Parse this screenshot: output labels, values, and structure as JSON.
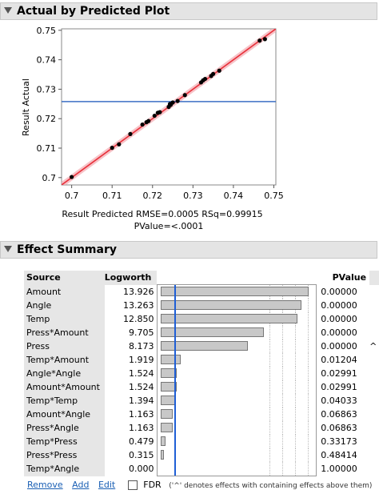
{
  "plot_section": {
    "title": "Actual by Predicted Plot"
  },
  "chart_data": {
    "type": "scatter",
    "title": "",
    "xlabel": "Result Predicted RMSE=0.0005 RSq=0.99915",
    "xlabel2": "PValue=<.0001",
    "ylabel": "Result Actual",
    "xlim": [
      0.6975,
      0.7505
    ],
    "ylim": [
      0.6975,
      0.7505
    ],
    "xticks": [
      "0.7",
      "0.71",
      "0.72",
      "0.73",
      "0.74",
      "0.75"
    ],
    "yticks": [
      "0.7",
      "0.71",
      "0.72",
      "0.73",
      "0.74",
      "0.75"
    ],
    "mean_line": 0.7258,
    "fit_line": [
      [
        0.6975,
        0.6975
      ],
      [
        0.7505,
        0.7505
      ]
    ],
    "points": [
      [
        0.7,
        0.7002
      ],
      [
        0.71,
        0.7101
      ],
      [
        0.7117,
        0.7113
      ],
      [
        0.7145,
        0.7148
      ],
      [
        0.7175,
        0.718
      ],
      [
        0.7185,
        0.7188
      ],
      [
        0.719,
        0.7192
      ],
      [
        0.7205,
        0.721
      ],
      [
        0.7213,
        0.722
      ],
      [
        0.7218,
        0.7222
      ],
      [
        0.724,
        0.724
      ],
      [
        0.7243,
        0.725
      ],
      [
        0.7245,
        0.7247
      ],
      [
        0.725,
        0.7255
      ],
      [
        0.7262,
        0.726
      ],
      [
        0.728,
        0.728
      ],
      [
        0.732,
        0.7323
      ],
      [
        0.7325,
        0.733
      ],
      [
        0.733,
        0.7335
      ],
      [
        0.7345,
        0.7345
      ],
      [
        0.735,
        0.7352
      ],
      [
        0.7365,
        0.7363
      ],
      [
        0.7465,
        0.7465
      ],
      [
        0.7478,
        0.747
      ]
    ],
    "colors": {
      "fit": "#e8303a",
      "band": "#f3aab0",
      "mean": "#3c6fc4",
      "point": "#000000"
    }
  },
  "effect_section": {
    "title": "Effect Summary",
    "headers": {
      "source": "Source",
      "logworth": "Logworth",
      "pvalue": "PValue"
    },
    "rows": [
      {
        "source": "Amount",
        "logworth": "13.926",
        "lw": 13.926,
        "pvalue": "0.00000",
        "flag": ""
      },
      {
        "source": "Angle",
        "logworth": "13.263",
        "lw": 13.263,
        "pvalue": "0.00000",
        "flag": ""
      },
      {
        "source": "Temp",
        "logworth": "12.850",
        "lw": 12.85,
        "pvalue": "0.00000",
        "flag": ""
      },
      {
        "source": "Press*Amount",
        "logworth": "9.705",
        "lw": 9.705,
        "pvalue": "0.00000",
        "flag": ""
      },
      {
        "source": "Press",
        "logworth": "8.173",
        "lw": 8.173,
        "pvalue": "0.00000",
        "flag": "^"
      },
      {
        "source": "Temp*Amount",
        "logworth": "1.919",
        "lw": 1.919,
        "pvalue": "0.01204",
        "flag": ""
      },
      {
        "source": "Angle*Angle",
        "logworth": "1.524",
        "lw": 1.524,
        "pvalue": "0.02991",
        "flag": ""
      },
      {
        "source": "Amount*Amount",
        "logworth": "1.524",
        "lw": 1.524,
        "pvalue": "0.02991",
        "flag": ""
      },
      {
        "source": "Temp*Temp",
        "logworth": "1.394",
        "lw": 1.394,
        "pvalue": "0.04033",
        "flag": ""
      },
      {
        "source": "Amount*Angle",
        "logworth": "1.163",
        "lw": 1.163,
        "pvalue": "0.06863",
        "flag": ""
      },
      {
        "source": "Press*Angle",
        "logworth": "1.163",
        "lw": 1.163,
        "pvalue": "0.06863",
        "flag": ""
      },
      {
        "source": "Temp*Press",
        "logworth": "0.479",
        "lw": 0.479,
        "pvalue": "0.33173",
        "flag": ""
      },
      {
        "source": "Press*Press",
        "logworth": "0.315",
        "lw": 0.315,
        "pvalue": "0.48414",
        "flag": ""
      },
      {
        "source": "Temp*Angle",
        "logworth": "0.000",
        "lw": 0.0,
        "pvalue": "1.00000",
        "flag": ""
      }
    ],
    "bar_max": 15,
    "ref_line": 1.3,
    "bar_color": "#c8c8c8",
    "ref_color": "#1f5fd6"
  },
  "footer": {
    "remove": "Remove",
    "add": "Add",
    "edit": "Edit",
    "fdr": "FDR",
    "note": "('^' denotes effects with containing effects above them)"
  }
}
